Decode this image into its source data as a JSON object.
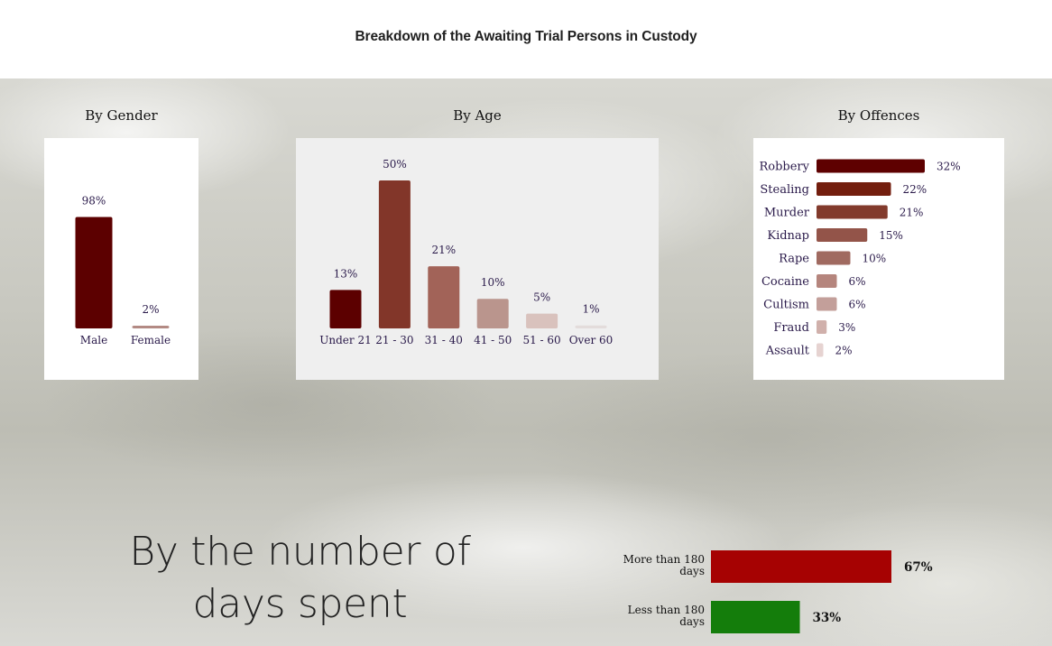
{
  "page": {
    "title": "Breakdown of the Awaiting Trial Persons in Custody"
  },
  "colors": {
    "accent_dark": "#5c0000",
    "days_more": "#a60202",
    "days_less": "#147d0b"
  },
  "chart_data": [
    {
      "type": "bar",
      "title": "By Gender",
      "categories": [
        "Male",
        "Female"
      ],
      "values": [
        98,
        2
      ],
      "value_labels": [
        "98%",
        "2%"
      ],
      "colors": [
        "#5c0000",
        "#b38a84"
      ],
      "ylim": [
        0,
        100
      ]
    },
    {
      "type": "bar",
      "title": "By Age",
      "categories": [
        "Under 21",
        "21 - 30",
        "31 - 40",
        "41 - 50",
        "51 - 60",
        "Over 60"
      ],
      "values": [
        13,
        50,
        21,
        10,
        5,
        1
      ],
      "value_labels": [
        "13%",
        "50%",
        "21%",
        "10%",
        "5%",
        "1%"
      ],
      "colors": [
        "#5c0000",
        "#823629",
        "#a26358",
        "#ba958d",
        "#d9c2bd",
        "#e3dcdb"
      ],
      "ylim": [
        0,
        50
      ]
    },
    {
      "type": "bar",
      "orientation": "horizontal",
      "title": "By Offences",
      "categories": [
        "Robbery",
        "Stealing",
        "Murder",
        "Kidnap",
        "Rape",
        "Cocaine",
        "Cultism",
        "Fraud",
        "Assault"
      ],
      "values": [
        32,
        22,
        21,
        15,
        10,
        6,
        6,
        3,
        2
      ],
      "value_labels": [
        "32%",
        "22%",
        "21%",
        "15%",
        "10%",
        "6%",
        "6%",
        "3%",
        "2%"
      ],
      "colors": [
        "#5e0000",
        "#731e0e",
        "#823a2c",
        "#935449",
        "#a06a60",
        "#b5857d",
        "#c39f9a",
        "#d0b0ab",
        "#e6d3d1"
      ],
      "xlim": [
        0,
        32
      ]
    },
    {
      "type": "bar",
      "orientation": "horizontal",
      "title": "By the number of days spent",
      "categories": [
        "More than 180 days",
        "Less than 180 days"
      ],
      "values": [
        67,
        33
      ],
      "value_labels": [
        "67%",
        "33%"
      ],
      "colors": [
        "#a60202",
        "#147d0b"
      ],
      "xlim": [
        0,
        67
      ]
    }
  ]
}
